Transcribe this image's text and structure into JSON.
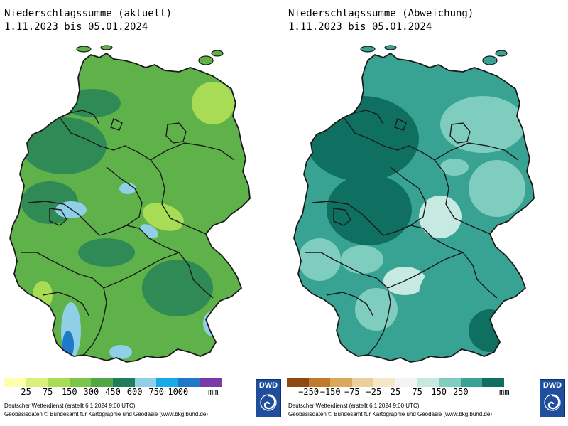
{
  "left_panel": {
    "title": "Niederschlagssumme (aktuell)",
    "subtitle": "1.11.2023 bis 05.01.2024",
    "legend": {
      "colors": [
        "#ffffb0",
        "#d9f07a",
        "#a9dc55",
        "#7cc44a",
        "#4fa844",
        "#1f7f5a",
        "#8fd0e6",
        "#19a8e8",
        "#1f78c8",
        "#7a3aa8"
      ],
      "ticks": [
        "25",
        "75",
        "150",
        "300",
        "450",
        "600",
        "750",
        "1000"
      ],
      "unit": "mm"
    },
    "credit_line1": "Deutscher Wetterdienst (erstellt 6.1.2024 9:00 UTC)",
    "credit_line2": "Geobasisdaten © Bundesamt für Kartographie und Geodäsie (www.bkg.bund.de)"
  },
  "right_panel": {
    "title": "Niederschlagssumme (Abweichung)",
    "subtitle": "1.11.2023 bis 05.01.2024",
    "legend": {
      "colors": [
        "#8a4a12",
        "#c07a2a",
        "#d9a85a",
        "#ecd09a",
        "#f4e8c8",
        "#f4f4f4",
        "#c6eae2",
        "#7fcdbf",
        "#38a393",
        "#0f6f61"
      ],
      "ticks": [
        "−250",
        "−150",
        "−75",
        "−25",
        "25",
        "75",
        "150",
        "250"
      ],
      "unit": "mm"
    },
    "credit_line1": "Deutscher Wetterdienst (erstellt 6.1.2024 9:00 UTC)",
    "credit_line2": "Geobasisdaten © Bundesamt für Kartographie und Geodäsie (www.bkg.bund.de)"
  },
  "logo": {
    "label": "DWD"
  },
  "map_colors": {
    "left_base": "#5fb24a",
    "left_dark": "#2f8a55",
    "left_light": "#a9dc55",
    "left_blue": "#8fd0e6",
    "left_deep": "#1f78c8",
    "right_base": "#38a393",
    "right_dark": "#0f6f61",
    "right_light": "#7fcdbf",
    "right_pale": "#c6eae2",
    "border": "#1a1a1a"
  }
}
